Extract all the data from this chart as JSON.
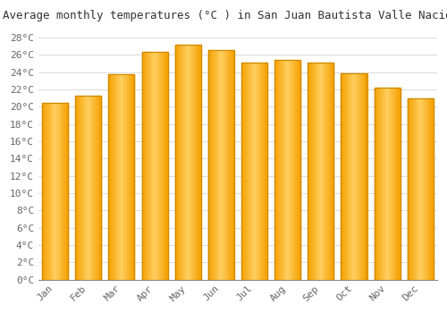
{
  "title": "Average monthly temperatures (°C ) in San Juan Bautista Valle Nacional",
  "months": [
    "Jan",
    "Feb",
    "Mar",
    "Apr",
    "May",
    "Jun",
    "Jul",
    "Aug",
    "Sep",
    "Oct",
    "Nov",
    "Dec"
  ],
  "values": [
    20.4,
    21.3,
    23.8,
    26.3,
    27.2,
    26.5,
    25.1,
    25.4,
    25.1,
    23.9,
    22.2,
    21.0
  ],
  "bar_color_center": "#FFD060",
  "bar_color_edge": "#F5A000",
  "bar_border_color": "#CC8800",
  "background_color": "#FFFFFF",
  "grid_color": "#DDDDDD",
  "ylim": [
    0,
    29
  ],
  "ytick_step": 2,
  "title_fontsize": 9,
  "tick_fontsize": 8,
  "font_family": "monospace"
}
